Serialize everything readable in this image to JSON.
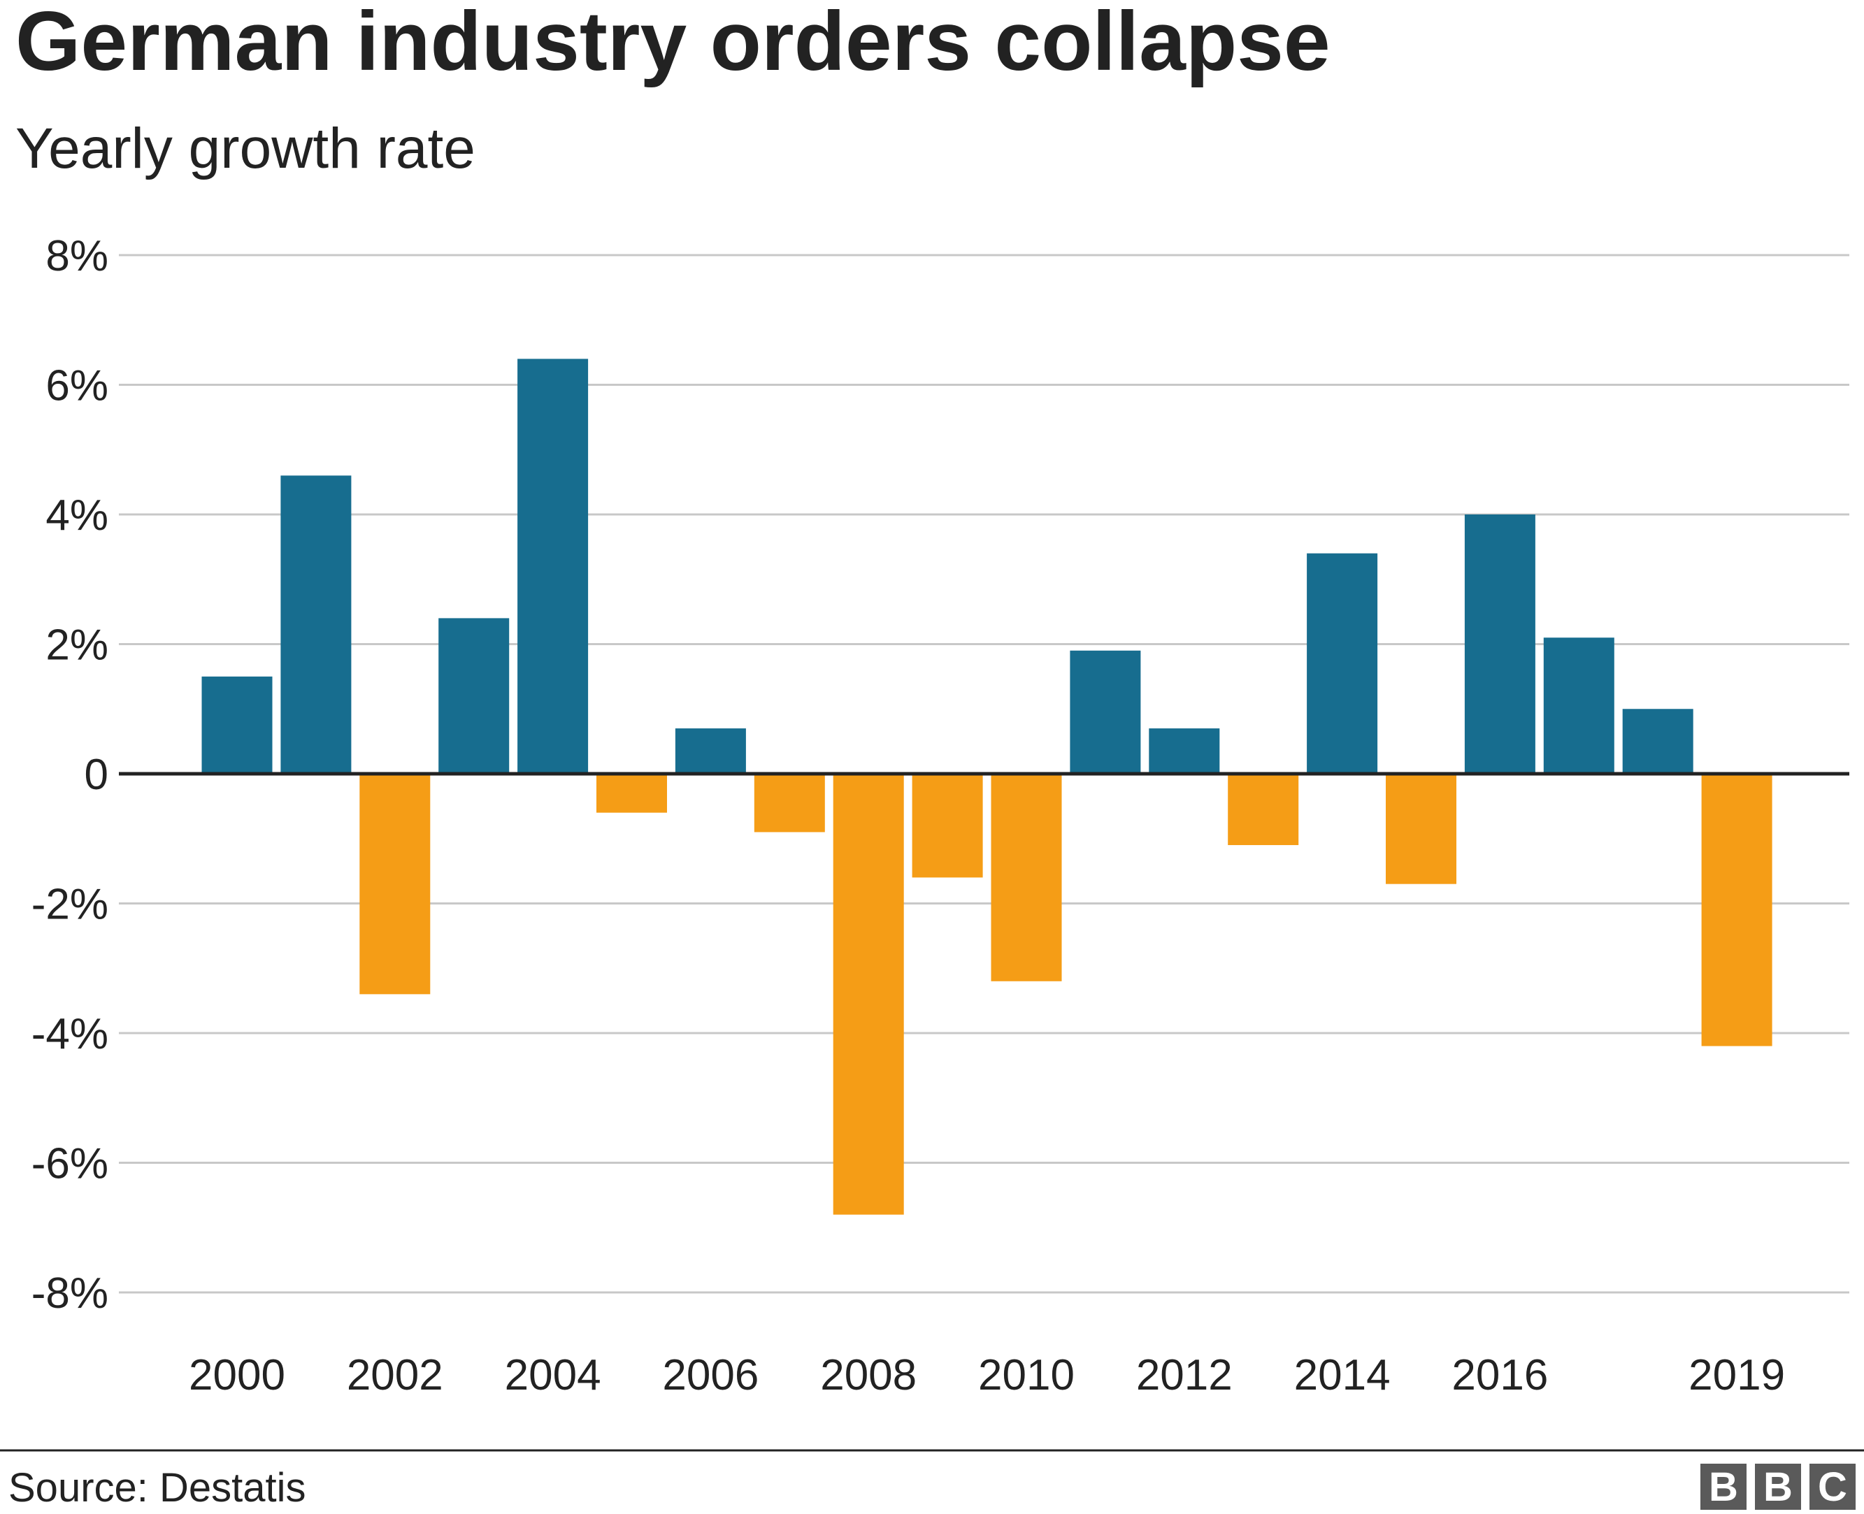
{
  "chart_data": {
    "type": "bar",
    "title": "German industry orders collapse",
    "subtitle": "Yearly growth rate",
    "x": [
      2000,
      2001,
      2002,
      2003,
      2004,
      2005,
      2006,
      2007,
      2008,
      2009,
      2010,
      2011,
      2012,
      2013,
      2014,
      2015,
      2016,
      2017,
      2018,
      2019
    ],
    "values": [
      1.5,
      4.6,
      -3.4,
      2.4,
      6.4,
      -0.6,
      0.7,
      -0.9,
      -6.8,
      -1.6,
      -3.2,
      1.9,
      0.7,
      -1.1,
      3.4,
      -1.7,
      4.0,
      2.1,
      1.0,
      -4.2
    ],
    "x_tick_labels": [
      "2000",
      "2002",
      "2004",
      "2006",
      "2008",
      "2010",
      "2012",
      "2014",
      "2016",
      "2019"
    ],
    "x_tick_values": [
      2000,
      2002,
      2004,
      2006,
      2008,
      2010,
      2012,
      2014,
      2016,
      2019
    ],
    "y_ticks": [
      8,
      6,
      4,
      2,
      0,
      -2,
      -4,
      -6,
      -8
    ],
    "y_tick_labels": [
      "8%",
      "6%",
      "4%",
      "2%",
      "0",
      "-2%",
      "-4%",
      "-6%",
      "-8%"
    ],
    "ylim": [
      -8,
      8
    ],
    "xlabel": "",
    "ylabel": "",
    "grid": true,
    "colors": {
      "positive": "#176d8f",
      "negative": "#f59d16",
      "grid": "#c8c8c8",
      "zero_line": "#222222"
    }
  },
  "footer": {
    "source": "Source: Destatis",
    "logo": {
      "letters": [
        "B",
        "B",
        "C"
      ],
      "color": "#5a5a5a"
    }
  }
}
